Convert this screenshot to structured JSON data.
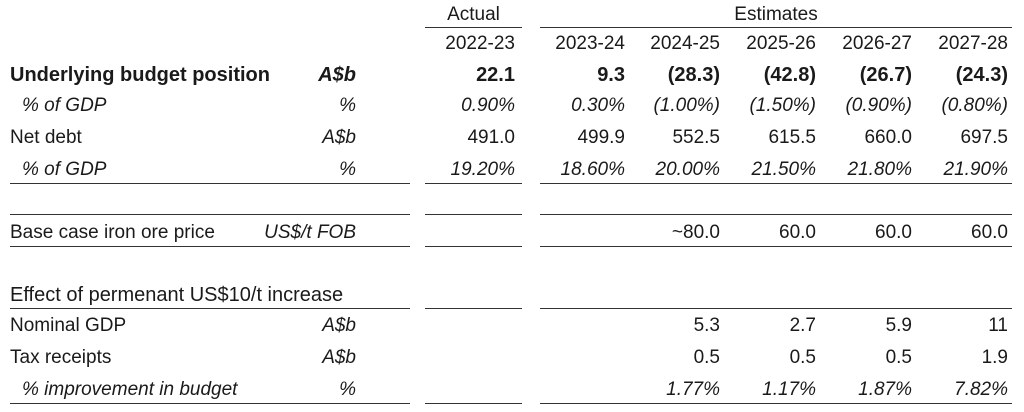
{
  "header": {
    "actual_label": "Actual",
    "estimates_label": "Estimates",
    "years": [
      "2022-23",
      "2023-24",
      "2024-25",
      "2025-26",
      "2026-27",
      "2027-28"
    ]
  },
  "rows": {
    "ubp": {
      "label": "Underlying budget position",
      "unit": "A$b",
      "values": [
        "22.1",
        "9.3",
        "(28.3)",
        "(42.8)",
        "(26.7)",
        "(24.3)"
      ]
    },
    "ubp_gdp": {
      "label": "% of GDP",
      "unit": "%",
      "values": [
        "0.90%",
        "0.30%",
        "(1.00%)",
        "(1.50%)",
        "(0.90%)",
        "(0.80%)"
      ]
    },
    "netdebt": {
      "label": "Net debt",
      "unit": "A$b",
      "values": [
        "491.0",
        "499.9",
        "552.5",
        "615.5",
        "660.0",
        "697.5"
      ]
    },
    "netdebt_gdp": {
      "label": "% of GDP",
      "unit": "%",
      "values": [
        "19.20%",
        "18.60%",
        "20.00%",
        "21.50%",
        "21.80%",
        "21.90%"
      ]
    },
    "ironore": {
      "label": "Base case iron ore price",
      "unit": "US$/t FOB",
      "values": [
        "",
        "",
        "~80.0",
        "60.0",
        "60.0",
        "60.0"
      ]
    },
    "effect": {
      "label": "Effect of permenant US$10/t increase"
    },
    "gdp": {
      "label": "Nominal GDP",
      "unit": "A$b",
      "values": [
        "",
        "",
        "5.3",
        "2.7",
        "5.9",
        "11"
      ]
    },
    "tax": {
      "label": "Tax receipts",
      "unit": "A$b",
      "values": [
        "",
        "",
        "0.5",
        "0.5",
        "0.5",
        "1.9"
      ]
    },
    "improve": {
      "label": "% improvement in budget",
      "unit": "%",
      "values": [
        "",
        "",
        "1.77%",
        "1.17%",
        "1.87%",
        "7.82%"
      ]
    }
  }
}
